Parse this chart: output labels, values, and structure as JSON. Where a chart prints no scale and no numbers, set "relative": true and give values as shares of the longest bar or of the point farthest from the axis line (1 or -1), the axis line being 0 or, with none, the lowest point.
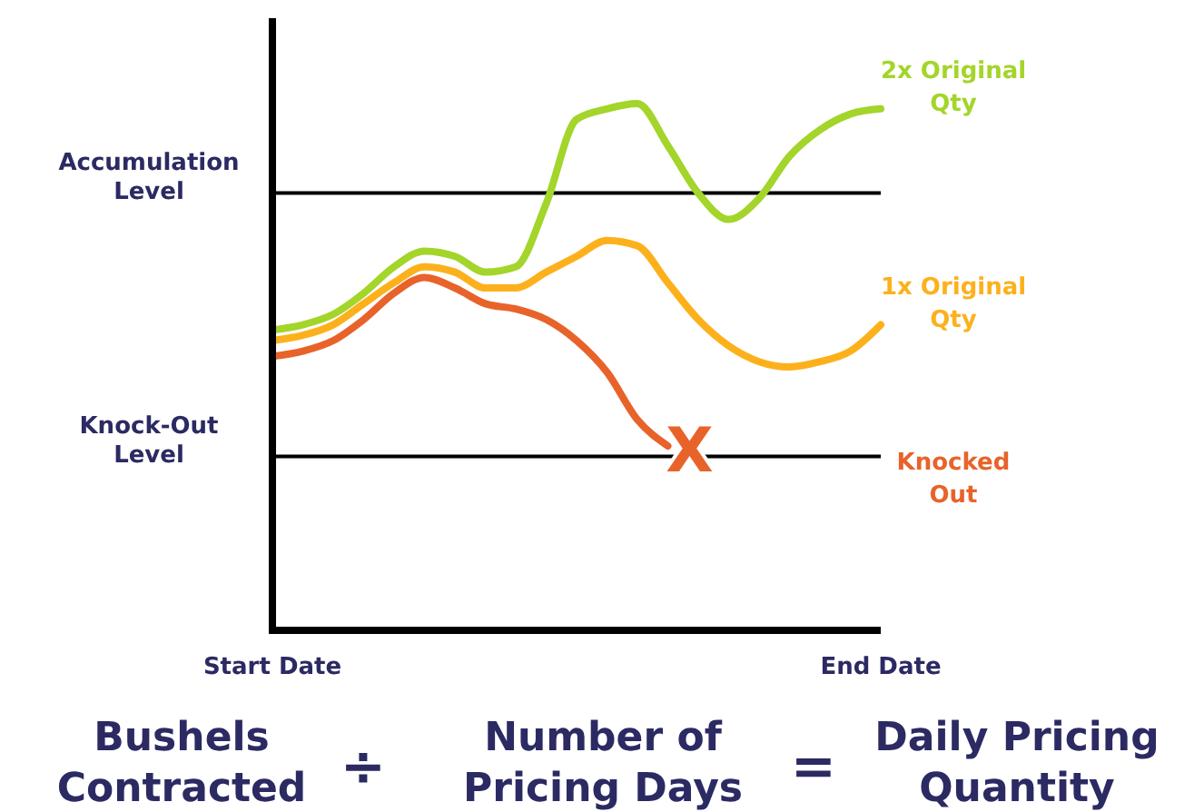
{
  "chart_data": {
    "type": "line",
    "relative": true,
    "tick_labels": "x",
    "categories": [
      "Start Date",
      null,
      null,
      null,
      null,
      null,
      null,
      null,
      null,
      null,
      null,
      null,
      null,
      null,
      null,
      null,
      null,
      null,
      null,
      null,
      "End Date"
    ],
    "series": [
      {
        "name": "2x Original Qty",
        "color": "#a3d52a",
        "values": [
          0.57,
          0.58,
          0.6,
          0.64,
          0.69,
          0.72,
          0.71,
          0.68,
          0.69,
          0.81,
          0.97,
          0.99,
          1,
          0.92,
          0.83,
          0.78,
          0.82,
          0.9,
          0.95,
          0.98,
          0.99
        ]
      },
      {
        "name": "1x Original Qty",
        "color": "#fcb11c",
        "values": [
          0.55,
          0.56,
          0.58,
          0.62,
          0.66,
          0.69,
          0.68,
          0.65,
          0.65,
          0.68,
          0.71,
          0.74,
          0.73,
          0.66,
          0.59,
          0.54,
          0.51,
          0.5,
          0.51,
          0.53,
          0.58
        ]
      },
      {
        "name": "Knocked Out",
        "color": "#e8632a",
        "values": [
          0.52,
          0.53,
          0.55,
          0.59,
          0.64,
          0.67,
          0.65,
          0.62,
          0.61,
          0.59,
          0.55,
          0.49,
          0.4,
          0.35,
          null,
          null,
          null,
          null,
          null,
          null,
          null
        ]
      }
    ],
    "ref_lines": [
      {
        "axis": "y",
        "value": 0.83,
        "label": "Accumulation Level",
        "color": "#000000"
      },
      {
        "axis": "y",
        "value": 0.33,
        "label": "Knock-Out Level",
        "color": "#000000"
      }
    ],
    "annotations": [
      "X",
      "Bushels Contracted",
      "÷",
      "Number of Pricing Days",
      "=",
      "Daily Pricing Quantity"
    ],
    "legend": false
  }
}
